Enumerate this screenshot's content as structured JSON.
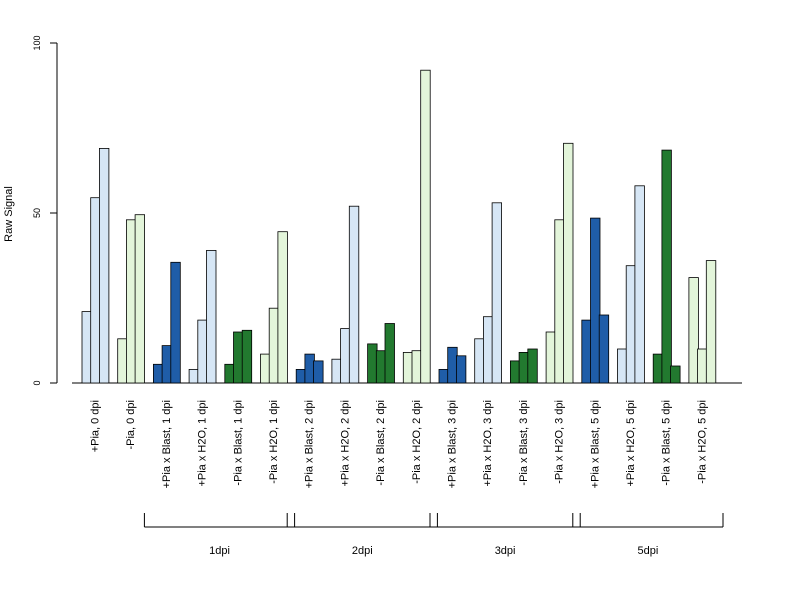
{
  "chart_data": {
    "type": "bar",
    "title": "",
    "xlabel": "",
    "ylabel": "Raw Signal",
    "ylim": [
      0,
      100
    ],
    "yticks": [
      0,
      50,
      100
    ],
    "grid": false,
    "legend": "none",
    "categories": [
      "+Pia, 0 dpi",
      "-Pia, 0 dpi",
      "+Pia x Blast, 1 dpi",
      "+Pia x H2O, 1 dpi",
      "-Pia x Blast, 1 dpi",
      "-Pia x H2O, 1 dpi",
      "+Pia x Blast, 2 dpi",
      "+Pia x H2O, 2 dpi",
      "-Pia x Blast, 2 dpi",
      "-Pia x H2O, 2 dpi",
      "+Pia x Blast, 3 dpi",
      "+Pia x H2O, 3 dpi",
      "-Pia x Blast, 3 dpi",
      "-Pia x H2O, 3 dpi",
      "+Pia x Blast, 5 dpi",
      "+Pia x H2O, 5 dpi",
      "-Pia x Blast, 5 dpi",
      "-Pia x H2O, 5 dpi"
    ],
    "values": [
      [
        21,
        54.5,
        69
      ],
      [
        13,
        48,
        49.5
      ],
      [
        5.5,
        11,
        35.5
      ],
      [
        4,
        18.5,
        39
      ],
      [
        5.5,
        15,
        15.5
      ],
      [
        8.5,
        22,
        44.5
      ],
      [
        4,
        8.5,
        6.5
      ],
      [
        7,
        16,
        52
      ],
      [
        11.5,
        9.5,
        17.5
      ],
      [
        9,
        9.5,
        92
      ],
      [
        4,
        10.5,
        8
      ],
      [
        13,
        19.5,
        53
      ],
      [
        6.5,
        9,
        10
      ],
      [
        15,
        48,
        70.5
      ],
      [
        18.5,
        48.5,
        20
      ],
      [
        10,
        34.5,
        58
      ],
      [
        8.5,
        68.5,
        5
      ],
      [
        31,
        10,
        36
      ]
    ],
    "colors": [
      "#d6e6f5",
      "#e3f5da",
      "#1f5da8",
      "#d6e6f5",
      "#22792f",
      "#e3f5da",
      "#1f5da8",
      "#d6e6f5",
      "#22792f",
      "#e3f5da",
      "#1f5da8",
      "#d6e6f5",
      "#22792f",
      "#e3f5da",
      "#1f5da8",
      "#d6e6f5",
      "#22792f",
      "#e3f5da"
    ],
    "groups": [
      {
        "label": "1dpi",
        "from": 2,
        "to": 5
      },
      {
        "label": "2dpi",
        "from": 6,
        "to": 9
      },
      {
        "label": "3dpi",
        "from": 10,
        "to": 13
      },
      {
        "label": "5dpi",
        "from": 14,
        "to": 17
      }
    ]
  }
}
